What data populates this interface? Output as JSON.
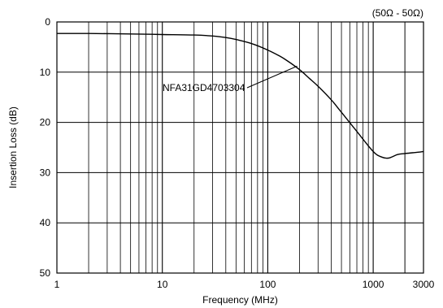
{
  "chart_data": {
    "type": "line",
    "title": "",
    "subtitle": "(50Ω - 50Ω)",
    "xlabel": "Frequency (MHz)",
    "ylabel": "Insertion Loss (dB)",
    "x_scale": "log",
    "xlim": [
      1,
      3000
    ],
    "ylim": [
      0,
      50
    ],
    "y_inverted": true,
    "x_tick_labels": [
      "1",
      "10",
      "100",
      "1000",
      "3000"
    ],
    "x_tick_values": [
      1,
      10,
      100,
      1000,
      3000
    ],
    "y_tick_labels": [
      "0",
      "10",
      "20",
      "30",
      "40",
      "50"
    ],
    "y_tick_values": [
      0,
      10,
      20,
      30,
      40,
      50
    ],
    "grid": true,
    "series": [
      {
        "name": "NFA31GD4703304",
        "x": [
          1,
          2,
          5,
          10,
          20,
          30,
          40,
          50,
          70,
          100,
          130,
          150,
          200,
          250,
          300,
          400,
          500,
          700,
          1000,
          1200,
          1400,
          1700,
          2000,
          2500,
          3000
        ],
        "y": [
          2.3,
          2.3,
          2.4,
          2.5,
          2.6,
          2.8,
          3.1,
          3.5,
          4.3,
          5.6,
          6.8,
          7.6,
          9.5,
          11.3,
          12.8,
          15.5,
          18.0,
          21.8,
          25.8,
          26.9,
          27.1,
          26.4,
          26.2,
          26.0,
          25.8
        ]
      }
    ],
    "annotation": {
      "text": "NFA31GD4703304",
      "points_to": {
        "x": 190,
        "y": 8.8
      }
    }
  }
}
